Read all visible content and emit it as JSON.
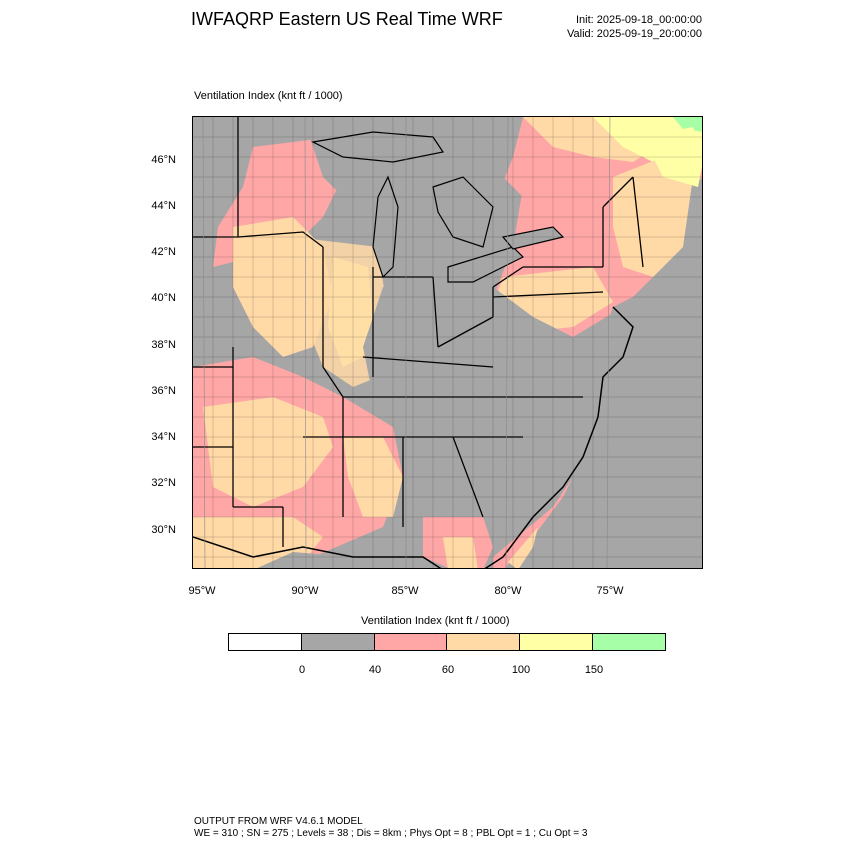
{
  "header": {
    "title": "IWFAQRP Eastern US Real Time WRF",
    "init": "Init: 2025-09-18_00:00:00",
    "valid": "Valid: 2025-09-19_20:00:00"
  },
  "plot": {
    "field_label": "Ventilation Index   (knt ft / 1000)",
    "lat_labels": [
      "46°N",
      "44°N",
      "42°N",
      "40°N",
      "38°N",
      "36°N",
      "34°N",
      "32°N",
      "30°N"
    ],
    "lon_labels": [
      "95°W",
      "90°W",
      "85°W",
      "80°W",
      "75°W"
    ]
  },
  "colorbar": {
    "title": "Ventilation Index  (knt ft / 1000)",
    "colors": [
      "#ffffff",
      "#a6a6a6",
      "#ffa6a6",
      "#ffd9a6",
      "#ffffa6",
      "#a6ffa6"
    ],
    "labels": [
      "0",
      "40",
      "60",
      "100",
      "150"
    ]
  },
  "colors": {
    "ocean": "#a6a6a6",
    "low": "#a6a6a6",
    "pink": "#ffa6a6",
    "orange": "#ffd9a6",
    "yellow": "#ffffa6",
    "green": "#a6ffa6"
  },
  "footer": {
    "line1": "OUTPUT FROM WRF V4.6.1 MODEL",
    "line2": "WE = 310 ; SN = 275 ; Levels = 38 ; Dis = 8km ; Phys Opt = 8 ; PBL Opt = 1 ; Cu Opt = 3"
  }
}
